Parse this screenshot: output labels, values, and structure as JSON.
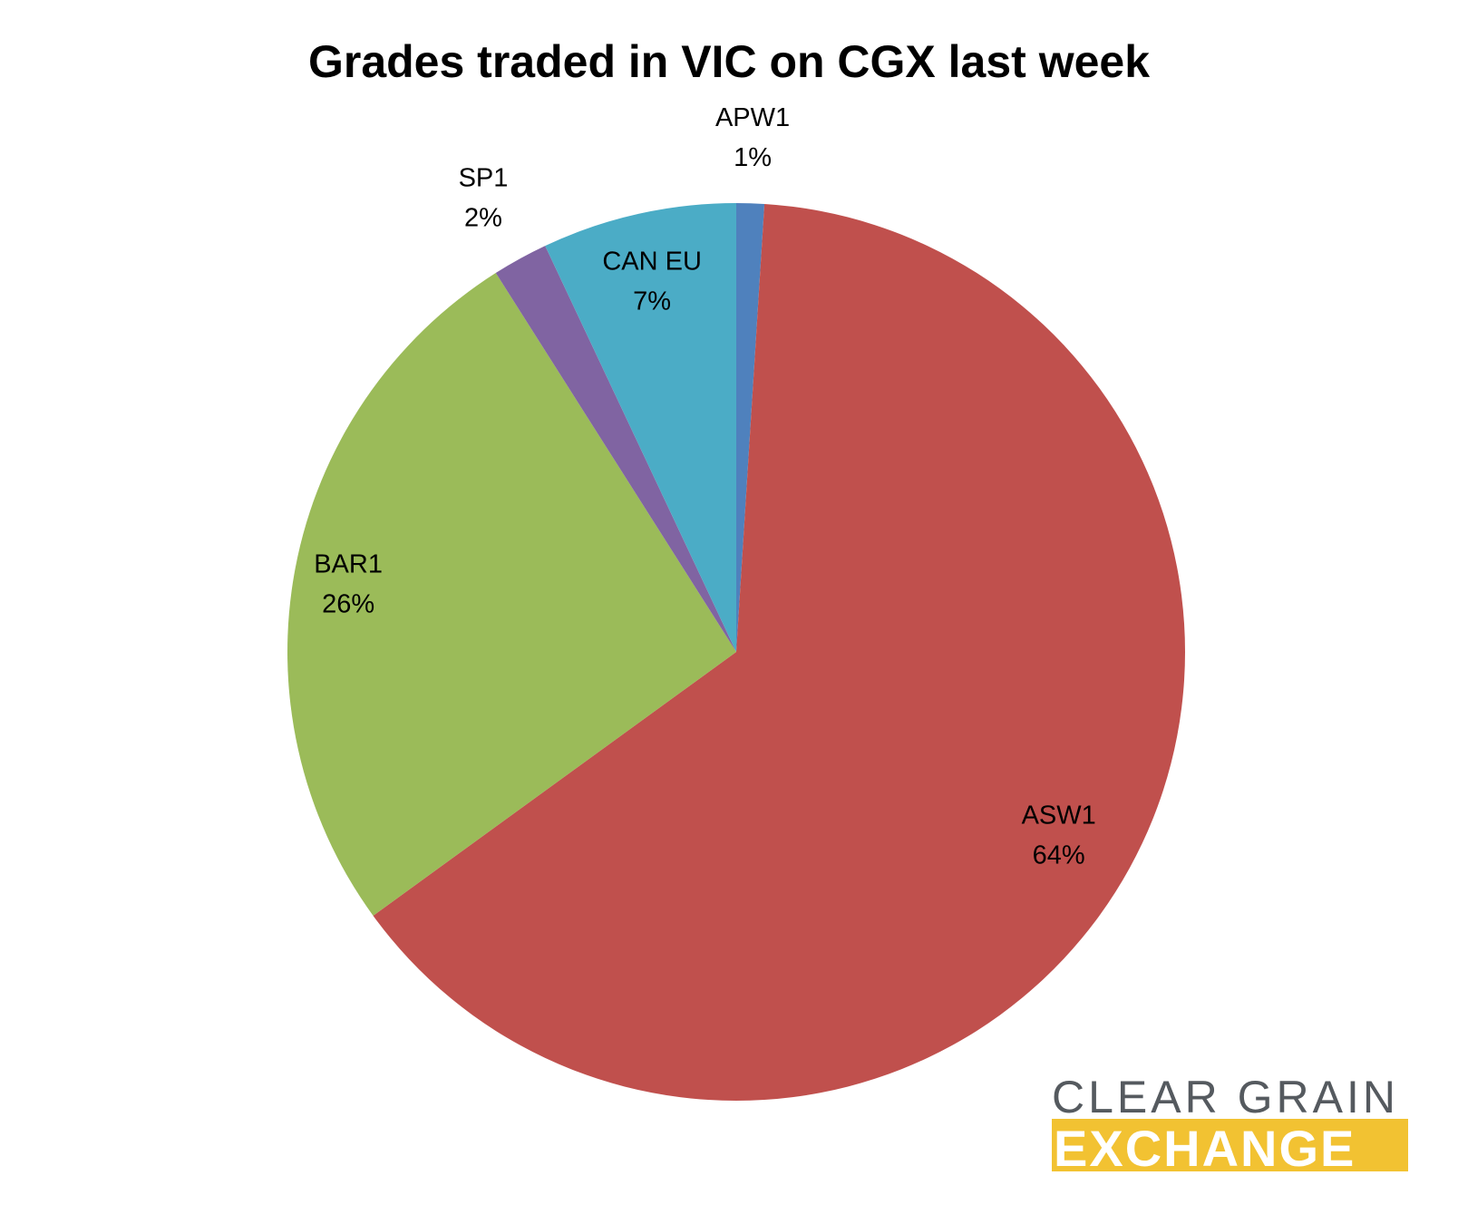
{
  "chart_data": {
    "type": "pie",
    "title": "Grades traded in VIC on CGX last week",
    "slices": [
      {
        "name": "APW1",
        "value": 1,
        "label": "1%",
        "color": "#4f81bd"
      },
      {
        "name": "ASW1",
        "value": 64,
        "label": "64%",
        "color": "#c0504d"
      },
      {
        "name": "BAR1",
        "value": 26,
        "label": "26%",
        "color": "#9bbb59"
      },
      {
        "name": "SP1",
        "value": 2,
        "label": "2%",
        "color": "#8064a2"
      },
      {
        "name": "CAN EU",
        "value": 7,
        "label": "7%",
        "color": "#4bacc6"
      }
    ],
    "start_angle": "top",
    "direction": "clockwise"
  },
  "logo": {
    "line1": "CLEAR GRAIN",
    "line2": "EXCHANGE",
    "text_color": "#555a5f",
    "band_color": "#f2c232"
  }
}
